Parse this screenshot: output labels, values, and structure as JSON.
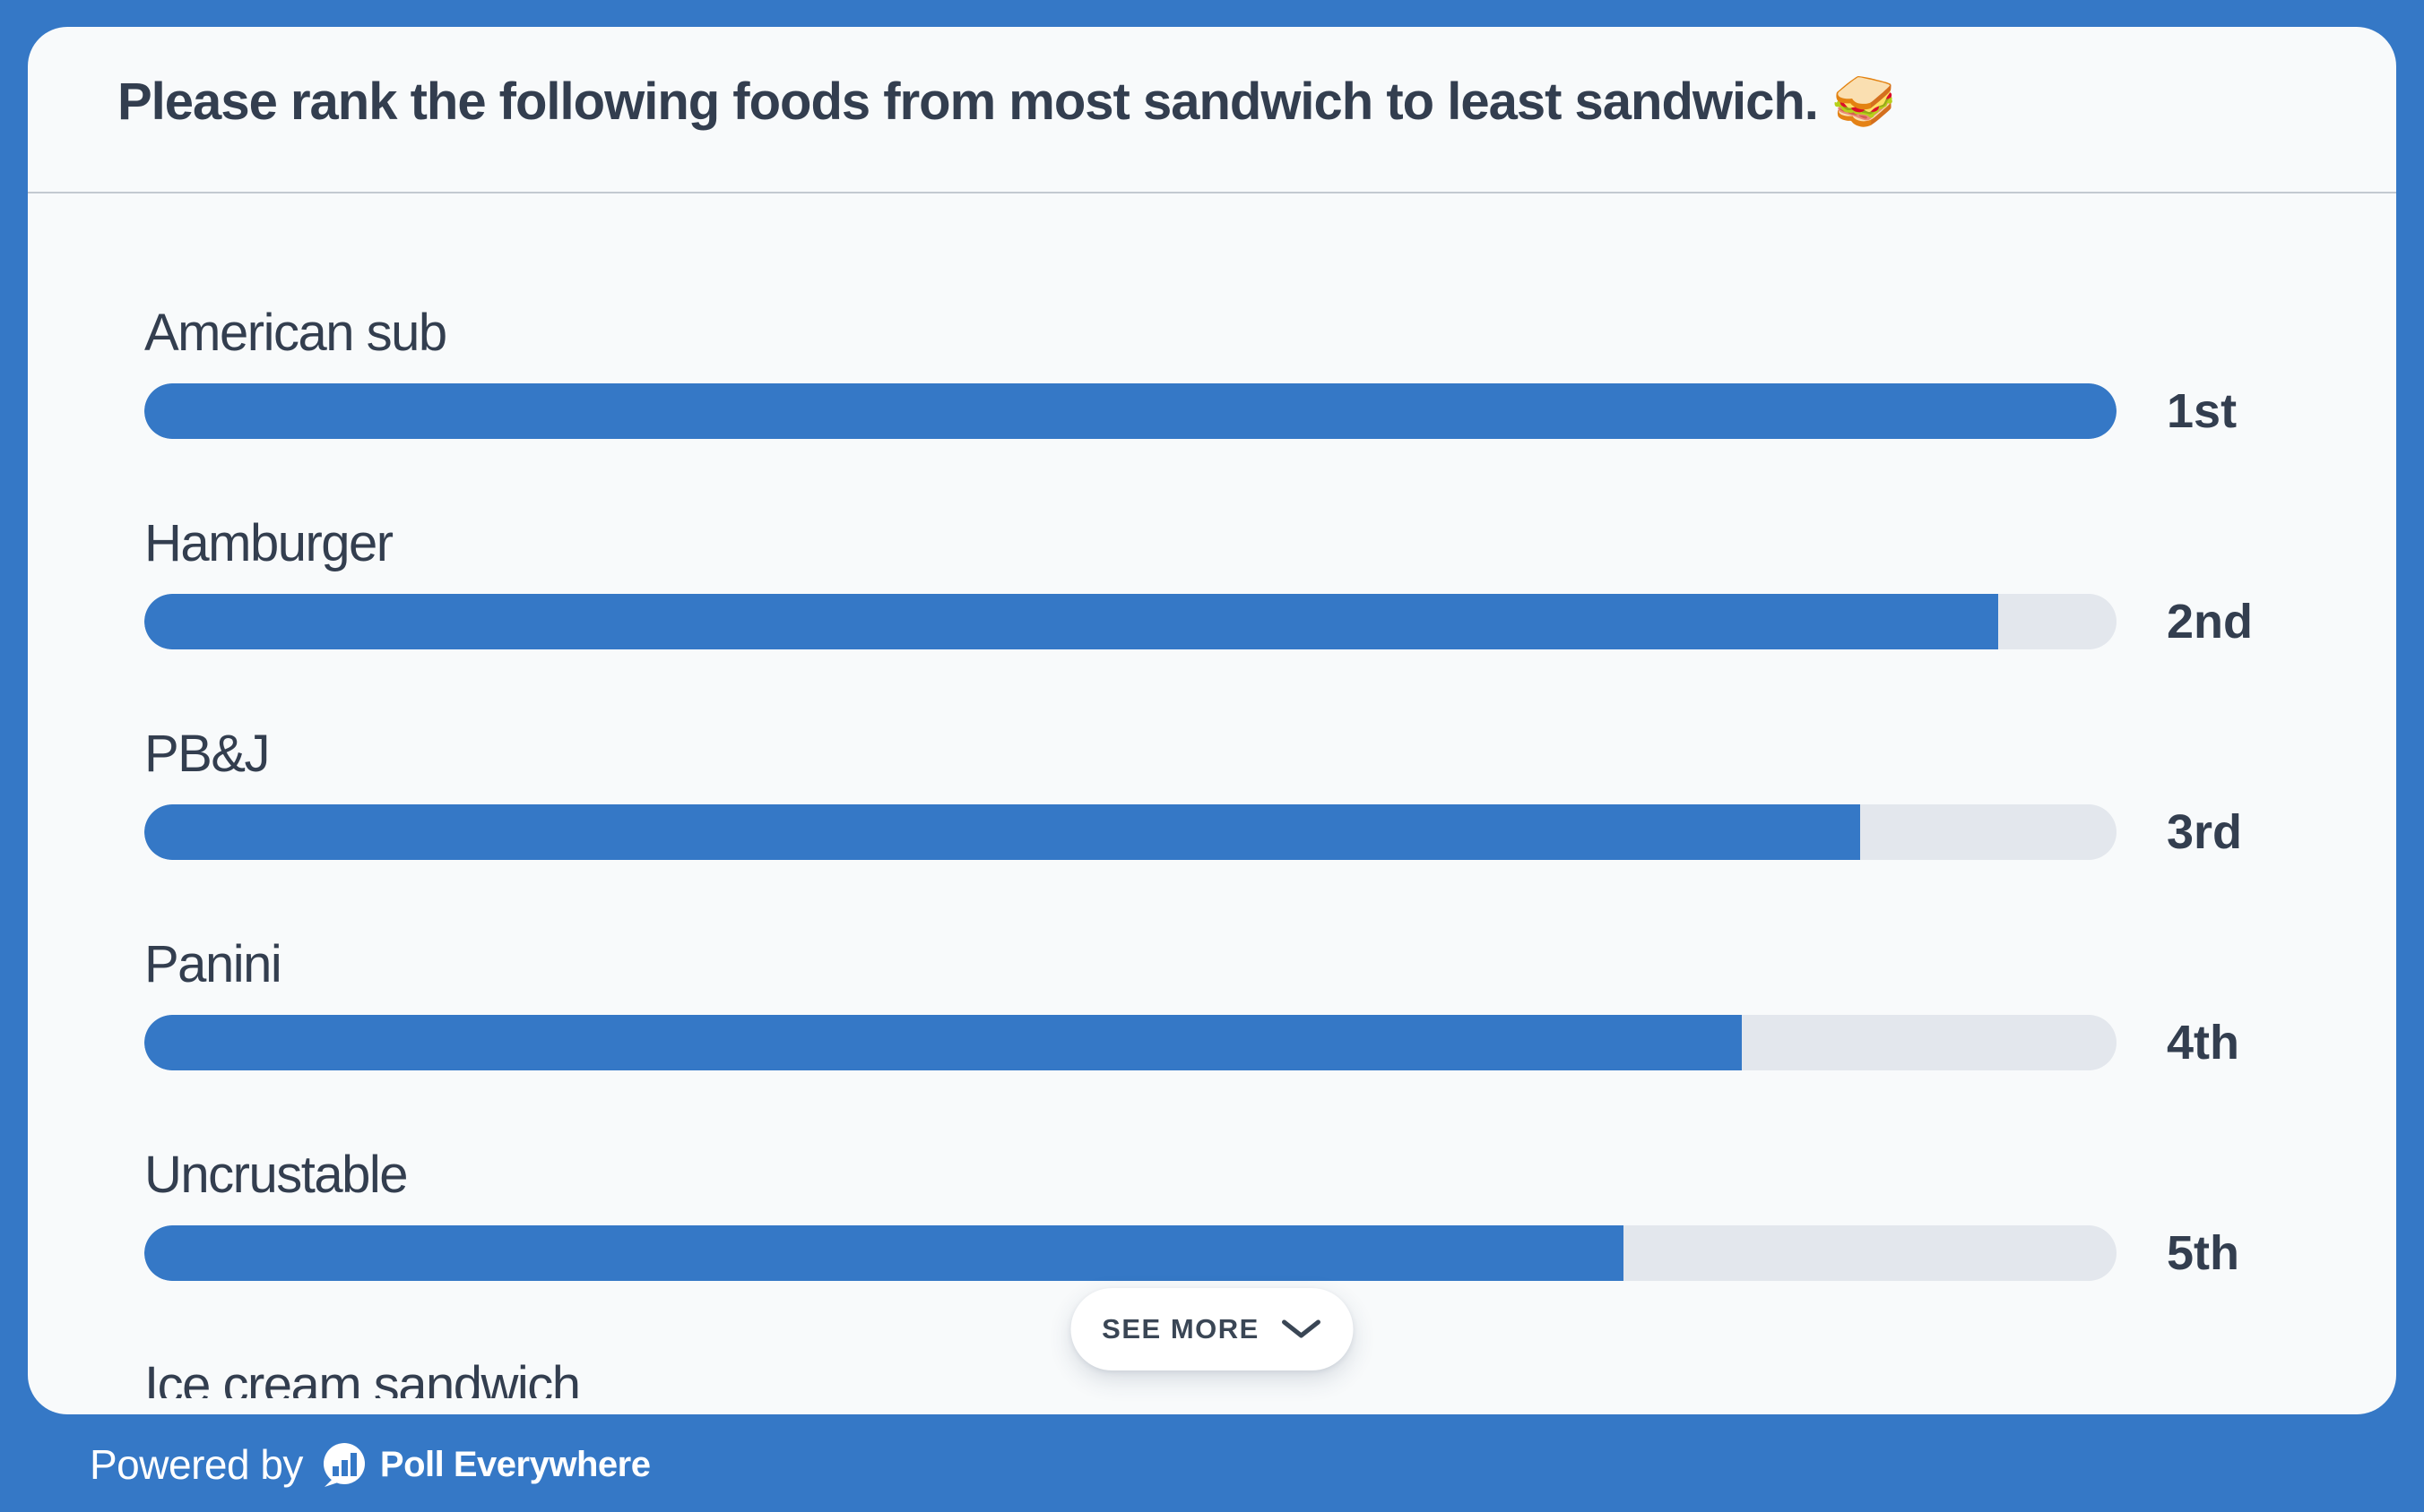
{
  "header": {
    "title": "Please rank the following foods from most sandwich to least sandwich. 🥪"
  },
  "chart_data": {
    "type": "bar",
    "orientation": "horizontal",
    "title": "Please rank the following foods from most sandwich to least sandwich. 🥪",
    "categories": [
      "American sub",
      "Hamburger",
      "PB&J",
      "Panini",
      "Uncrustable",
      "Ice cream sandwich"
    ],
    "items": [
      {
        "label": "American sub",
        "rank": "1st",
        "fill_pct": 100
      },
      {
        "label": "Hamburger",
        "rank": "2nd",
        "fill_pct": 94
      },
      {
        "label": "PB&J",
        "rank": "3rd",
        "fill_pct": 87
      },
      {
        "label": "Panini",
        "rank": "4th",
        "fill_pct": 81
      },
      {
        "label": "Uncrustable",
        "rank": "5th",
        "fill_pct": 75
      },
      {
        "label": "Ice cream sandwich",
        "rank": null,
        "fill_pct": null
      }
    ],
    "xlim": [
      0,
      100
    ],
    "grid": false,
    "legend": false,
    "bar_color": "#3578c6",
    "track_color": "#e3e7ed"
  },
  "see_more": {
    "label": "SEE MORE"
  },
  "footer": {
    "powered_by": "Powered by",
    "brand": "Poll Everywhere"
  },
  "colors": {
    "accent_blue": "#3578c6",
    "card_bg": "#f8fafb",
    "track_gray": "#e3e7ed",
    "text_dark": "#333e4f"
  }
}
